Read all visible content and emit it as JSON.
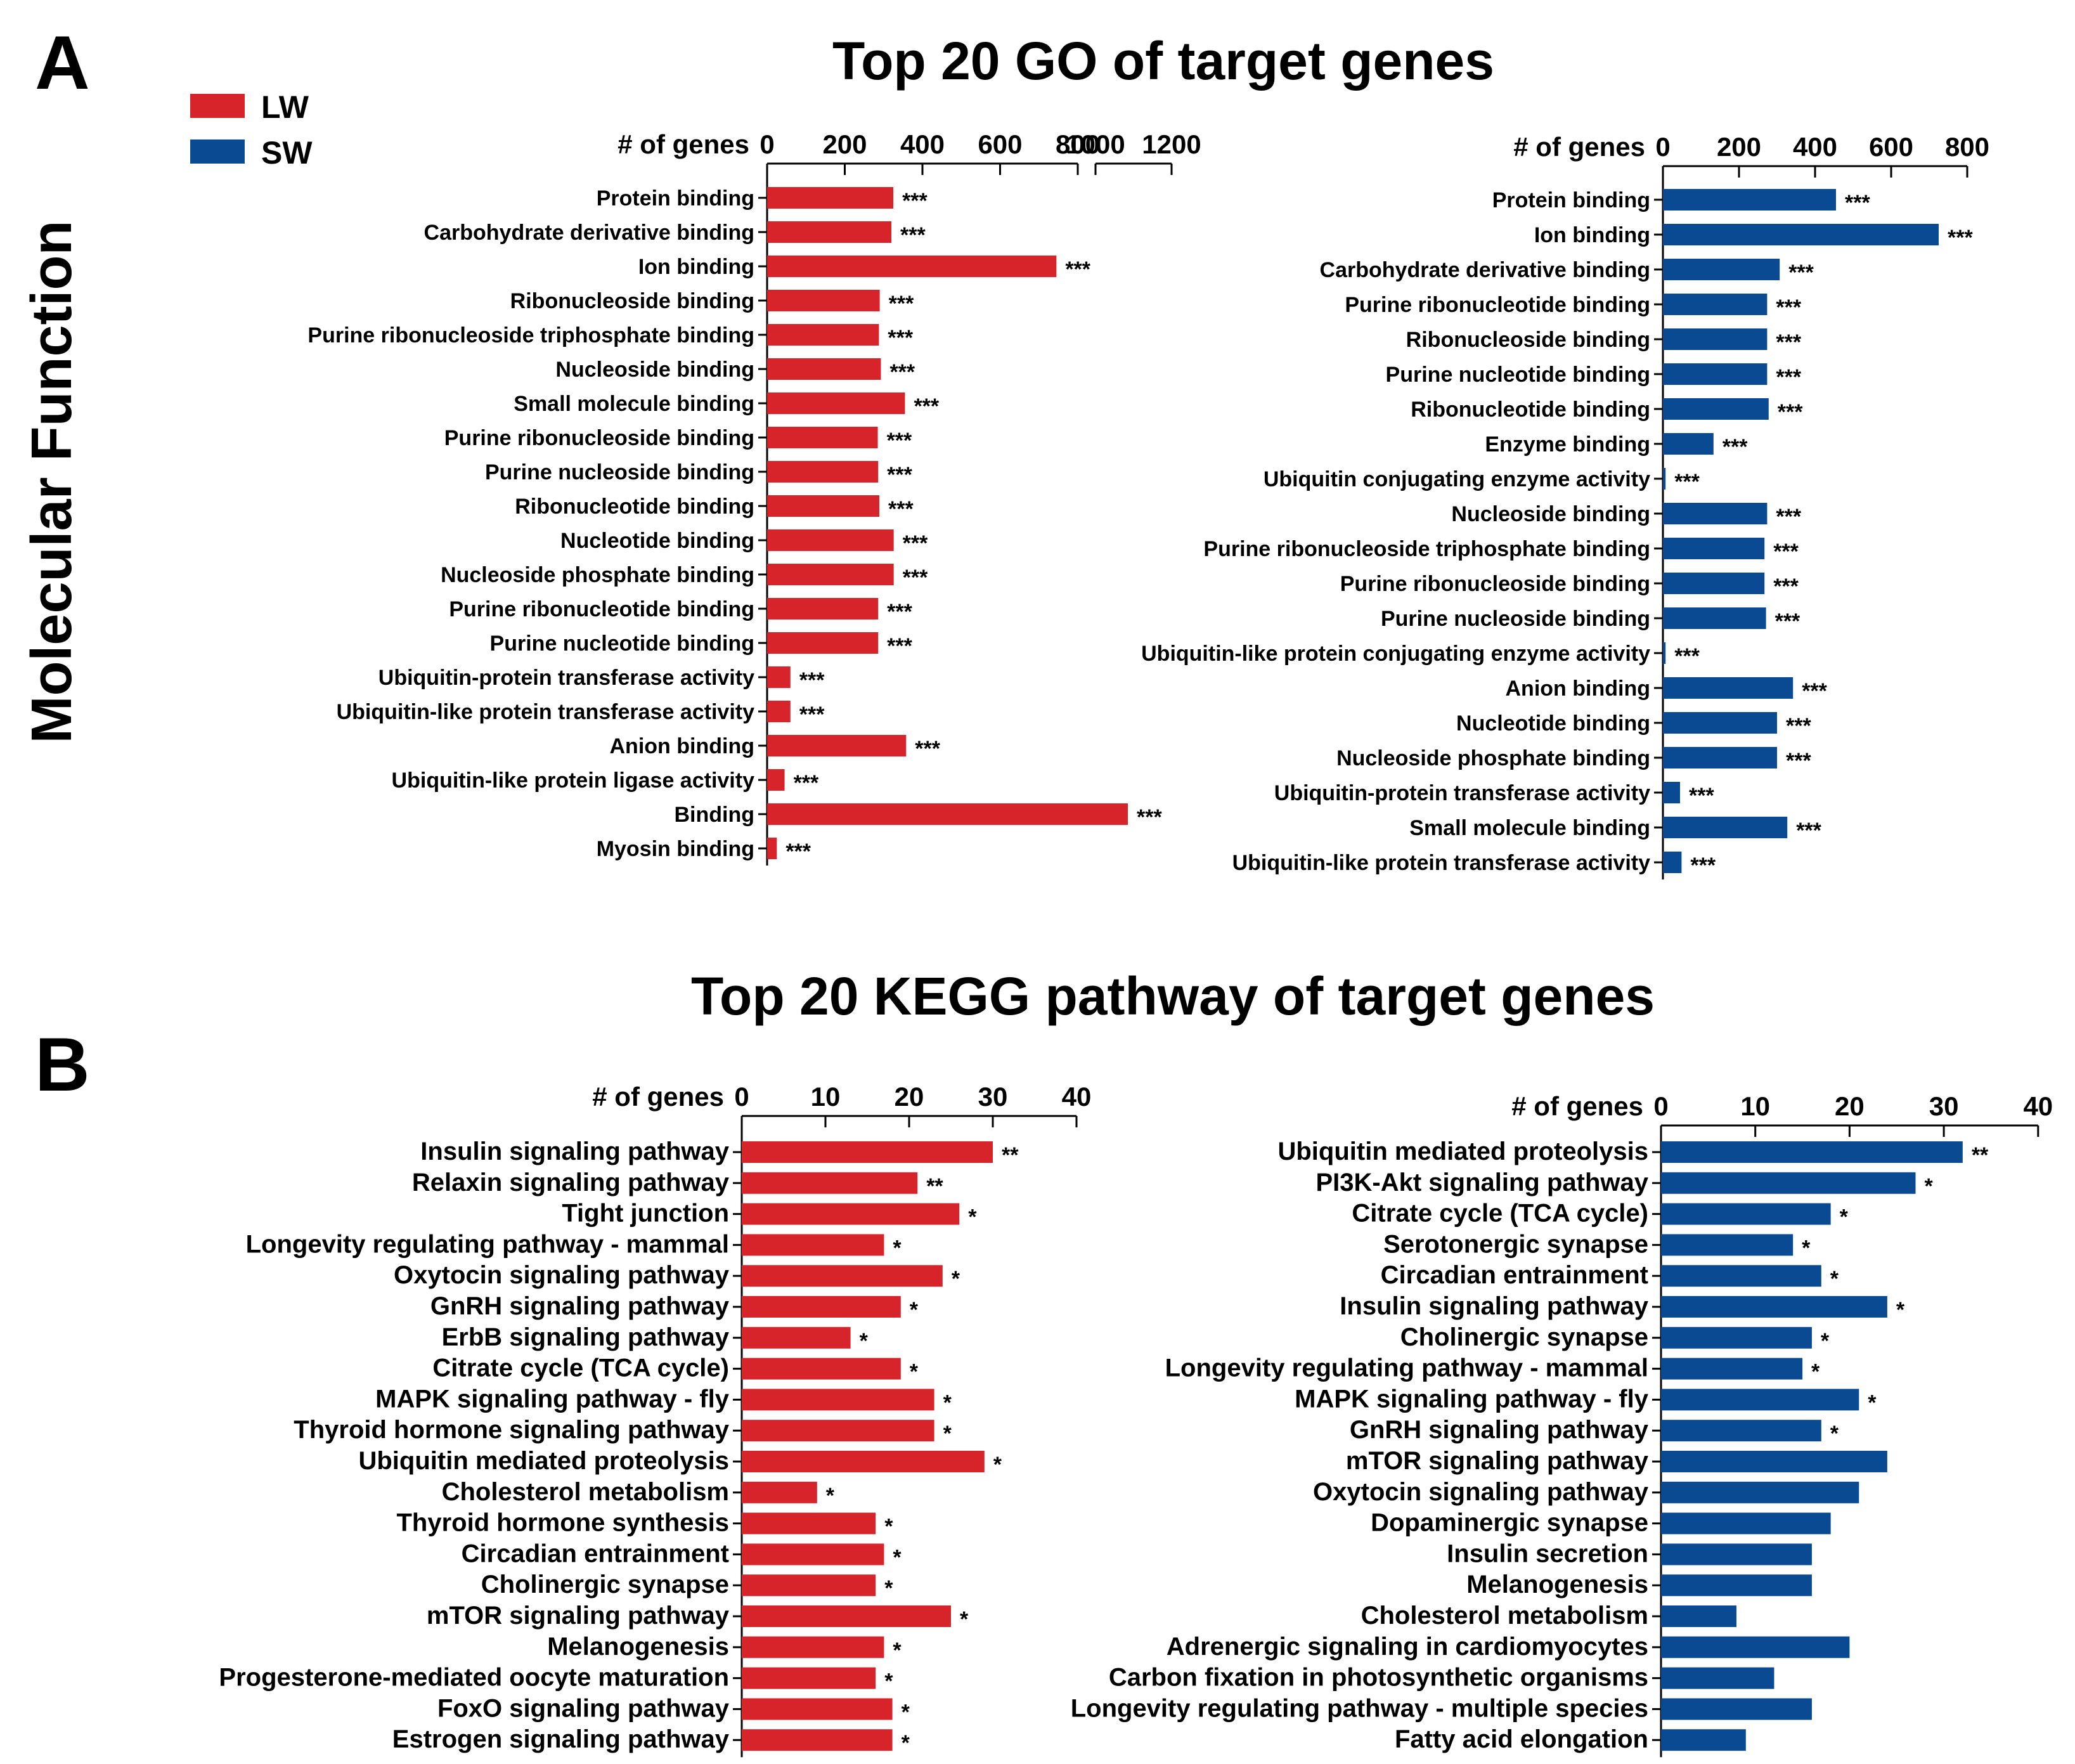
{
  "panels": {
    "a_label": "A",
    "b_label": "B"
  },
  "side_label": "Molecular Function",
  "legend": [
    {
      "label": "LW",
      "color": "#d7242a"
    },
    {
      "label": "SW",
      "color": "#0a4a92"
    }
  ],
  "titles": {
    "go": "Top 20 GO of target genes",
    "kegg": "Top 20 KEGG pathway of target genes"
  },
  "chart_data": [
    {
      "id": "go_lw",
      "type": "bar",
      "orientation": "horizontal",
      "xlabel": "# of genes",
      "xticks": [
        "0",
        "200",
        "400",
        "600",
        "800",
        "1000",
        "1200"
      ],
      "xlim": [
        0,
        1200
      ],
      "axis_break": [
        800,
        1000
      ],
      "color": "#d7242a",
      "categories": [
        "Protein binding",
        "Carbohydrate derivative binding",
        "Ion binding",
        "Ribonucleoside binding",
        "Purine ribonucleoside triphosphate binding",
        "Nucleoside binding",
        "Small molecule binding",
        "Purine ribonucleoside binding",
        "Purine nucleoside binding",
        "Ribonucleotide binding",
        "Nucleotide binding",
        "Nucleoside phosphate binding",
        "Purine ribonucleotide binding",
        "Purine nucleotide binding",
        "Ubiquitin-protein transferase activity",
        "Ubiquitin-like protein transferase activity",
        "Anion binding",
        "Ubiquitin-like protein ligase activity",
        "Binding",
        "Myosin binding"
      ],
      "values": [
        325,
        320,
        745,
        290,
        288,
        293,
        355,
        285,
        286,
        289,
        326,
        326,
        286,
        286,
        60,
        60,
        358,
        45,
        1085,
        25
      ],
      "significance": [
        "***",
        "***",
        "***",
        "***",
        "***",
        "***",
        "***",
        "***",
        "***",
        "***",
        "***",
        "***",
        "***",
        "***",
        "***",
        "***",
        "***",
        "***",
        "***",
        "***"
      ]
    },
    {
      "id": "go_sw",
      "type": "bar",
      "orientation": "horizontal",
      "xlabel": "# of genes",
      "xticks": [
        "0",
        "200",
        "400",
        "600",
        "800"
      ],
      "xlim": [
        0,
        800
      ],
      "color": "#0a4a92",
      "categories": [
        "Protein binding",
        "Ion binding",
        "Carbohydrate derivative binding",
        "Purine ribonucleotide binding",
        "Ribonucleoside binding",
        "Purine nucleotide binding",
        "Ribonucleotide binding",
        "Enzyme binding",
        "Ubiquitin conjugating enzyme activity",
        "Nucleoside binding",
        "Purine ribonucleoside triphosphate binding",
        "Purine ribonucleoside binding",
        "Purine nucleoside binding",
        "Ubiquitin-like protein conjugating enzyme activity",
        "Anion binding",
        "Nucleotide binding",
        "Nucleoside phosphate binding",
        "Ubiquitin-protein transferase activity",
        "Small molecule binding",
        "Ubiquitin-like protein transferase activity"
      ],
      "values": [
        455,
        725,
        307,
        274,
        274,
        274,
        278,
        133,
        7,
        274,
        267,
        267,
        271,
        7,
        342,
        300,
        300,
        45,
        327,
        49
      ],
      "significance": [
        "***",
        "***",
        "***",
        "***",
        "***",
        "***",
        "***",
        "***",
        "***",
        "***",
        "***",
        "***",
        "***",
        "***",
        "***",
        "***",
        "***",
        "***",
        "***",
        "***"
      ]
    },
    {
      "id": "kegg_lw",
      "type": "bar",
      "orientation": "horizontal",
      "xlabel": "# of genes",
      "xticks": [
        "0",
        "10",
        "20",
        "30",
        "40"
      ],
      "xlim": [
        0,
        40
      ],
      "color": "#d7242a",
      "categories": [
        "Insulin signaling pathway",
        "Relaxin signaling pathway",
        "Tight junction",
        "Longevity regulating pathway - mammal",
        "Oxytocin signaling pathway",
        "GnRH signaling pathway",
        "ErbB signaling pathway",
        "Citrate cycle (TCA cycle)",
        "MAPK signaling pathway - fly",
        "Thyroid hormone signaling pathway",
        "Ubiquitin mediated proteolysis",
        "Cholesterol metabolism",
        "Thyroid hormone synthesis",
        "Circadian entrainment",
        "Cholinergic synapse",
        "mTOR signaling pathway",
        "Melanogenesis",
        "Progesterone-mediated oocyte maturation",
        "FoxO signaling pathway",
        "Estrogen signaling pathway"
      ],
      "values": [
        30,
        21,
        26,
        17,
        24,
        19,
        13,
        19,
        23,
        23,
        29,
        9,
        16,
        17,
        16,
        25,
        17,
        16,
        18,
        18
      ],
      "significance": [
        "**",
        "**",
        "*",
        "*",
        "*",
        "*",
        "*",
        "*",
        "*",
        "*",
        "*",
        "*",
        "*",
        "*",
        "*",
        "*",
        "*",
        "*",
        "*",
        "*"
      ]
    },
    {
      "id": "kegg_sw",
      "type": "bar",
      "orientation": "horizontal",
      "xlabel": "# of genes",
      "xticks": [
        "0",
        "10",
        "20",
        "30",
        "40"
      ],
      "xlim": [
        0,
        40
      ],
      "color": "#0a4a92",
      "categories": [
        "Ubiquitin mediated proteolysis",
        "PI3K-Akt signaling pathway",
        "Citrate cycle (TCA cycle)",
        "Serotonergic synapse",
        "Circadian entrainment",
        "Insulin signaling pathway",
        "Cholinergic synapse",
        "Longevity regulating pathway - mammal",
        "MAPK signaling pathway - fly",
        "GnRH signaling pathway",
        "mTOR signaling pathway",
        "Oxytocin signaling pathway",
        "Dopaminergic synapse",
        "Insulin secretion",
        "Melanogenesis",
        "Cholesterol metabolism",
        "Adrenergic signaling in cardiomyocytes",
        "Carbon fixation in photosynthetic organisms",
        "Longevity regulating pathway - multiple species",
        "Fatty acid elongation"
      ],
      "values": [
        32,
        27,
        18,
        14,
        17,
        24,
        16,
        15,
        21,
        17,
        24,
        21,
        18,
        16,
        16,
        8,
        20,
        12,
        16,
        9
      ],
      "significance": [
        "**",
        "*",
        "*",
        "*",
        "*",
        "*",
        "*",
        "*",
        "*",
        "*",
        "",
        "",
        "",
        "",
        "",
        "",
        "",
        "",
        "",
        ""
      ]
    }
  ]
}
